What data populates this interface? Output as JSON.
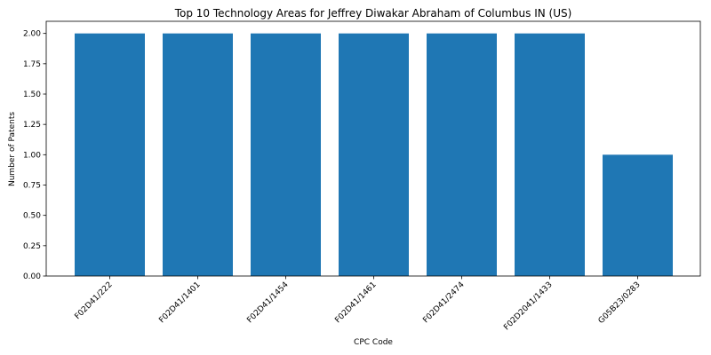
{
  "chart_data": {
    "type": "bar",
    "title": "Top 10 Technology Areas for Jeffrey Diwakar Abraham of Columbus IN (US)",
    "xlabel": "CPC Code",
    "ylabel": "Number of Patents",
    "categories": [
      "F02D41/222",
      "F02D41/1401",
      "F02D41/1454",
      "F02D41/1461",
      "F02D41/2474",
      "F02D2041/1433",
      "G05B23/0283"
    ],
    "values": [
      2,
      2,
      2,
      2,
      2,
      2,
      1
    ],
    "ylim": [
      0,
      2.1
    ],
    "yticks": [
      "0.00",
      "0.25",
      "0.50",
      "0.75",
      "1.00",
      "1.25",
      "1.50",
      "1.75",
      "2.00"
    ],
    "bar_color": "#1f77b4",
    "grid": false,
    "legend": "none"
  }
}
